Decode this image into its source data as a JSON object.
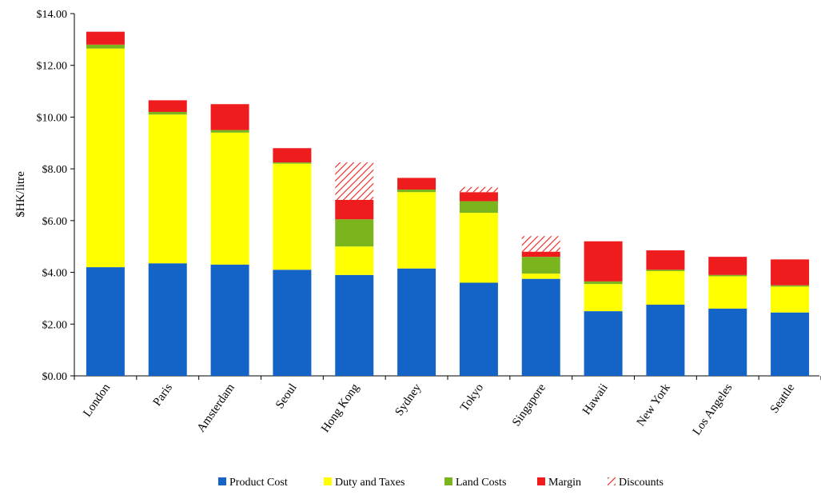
{
  "chart_data": {
    "type": "bar",
    "stacked": true,
    "title": "",
    "xlabel": "",
    "ylabel": "$HK/litre",
    "ylim": [
      0,
      14
    ],
    "yticks": [
      0,
      2,
      4,
      6,
      8,
      10,
      12,
      14
    ],
    "ytick_labels": [
      "$0.00",
      "$2.00",
      "$4.00",
      "$6.00",
      "$8.00",
      "$10.00",
      "$12.00",
      "$14.00"
    ],
    "grid": false,
    "legend_position": "bottom",
    "categories": [
      "London",
      "Paris",
      "Amsterdam",
      "Seoul",
      "Hong Kong",
      "Sydney",
      "Tokyo",
      "Singapore",
      "Hawaii",
      "New York",
      "Los Angeles",
      "Seattle"
    ],
    "series": [
      {
        "name": "Product Cost",
        "color": "#1464c8",
        "pattern": "solid",
        "values": [
          4.2,
          4.35,
          4.3,
          4.1,
          3.9,
          4.15,
          3.6,
          3.75,
          2.5,
          2.75,
          2.6,
          2.45
        ]
      },
      {
        "name": "Duty and Taxes",
        "color": "#ffff00",
        "pattern": "solid",
        "values": [
          8.45,
          5.75,
          5.1,
          4.1,
          1.1,
          2.95,
          2.7,
          0.2,
          1.05,
          1.3,
          1.25,
          1.0
        ]
      },
      {
        "name": "Land Costs",
        "color": "#7ab51d",
        "pattern": "solid",
        "values": [
          0.15,
          0.1,
          0.1,
          0.05,
          1.05,
          0.1,
          0.45,
          0.65,
          0.1,
          0.05,
          0.05,
          0.05
        ]
      },
      {
        "name": "Margin",
        "color": "#ee1c1c",
        "pattern": "solid",
        "values": [
          0.5,
          0.45,
          1.0,
          0.55,
          0.75,
          0.45,
          0.35,
          0.2,
          1.55,
          0.75,
          0.7,
          1.0
        ]
      },
      {
        "name": "Discounts",
        "color": "#ee1c1c",
        "pattern": "hatched",
        "values": [
          0,
          0,
          0,
          0,
          1.45,
          0,
          0.2,
          0.6,
          0,
          0,
          0,
          0
        ]
      }
    ]
  }
}
